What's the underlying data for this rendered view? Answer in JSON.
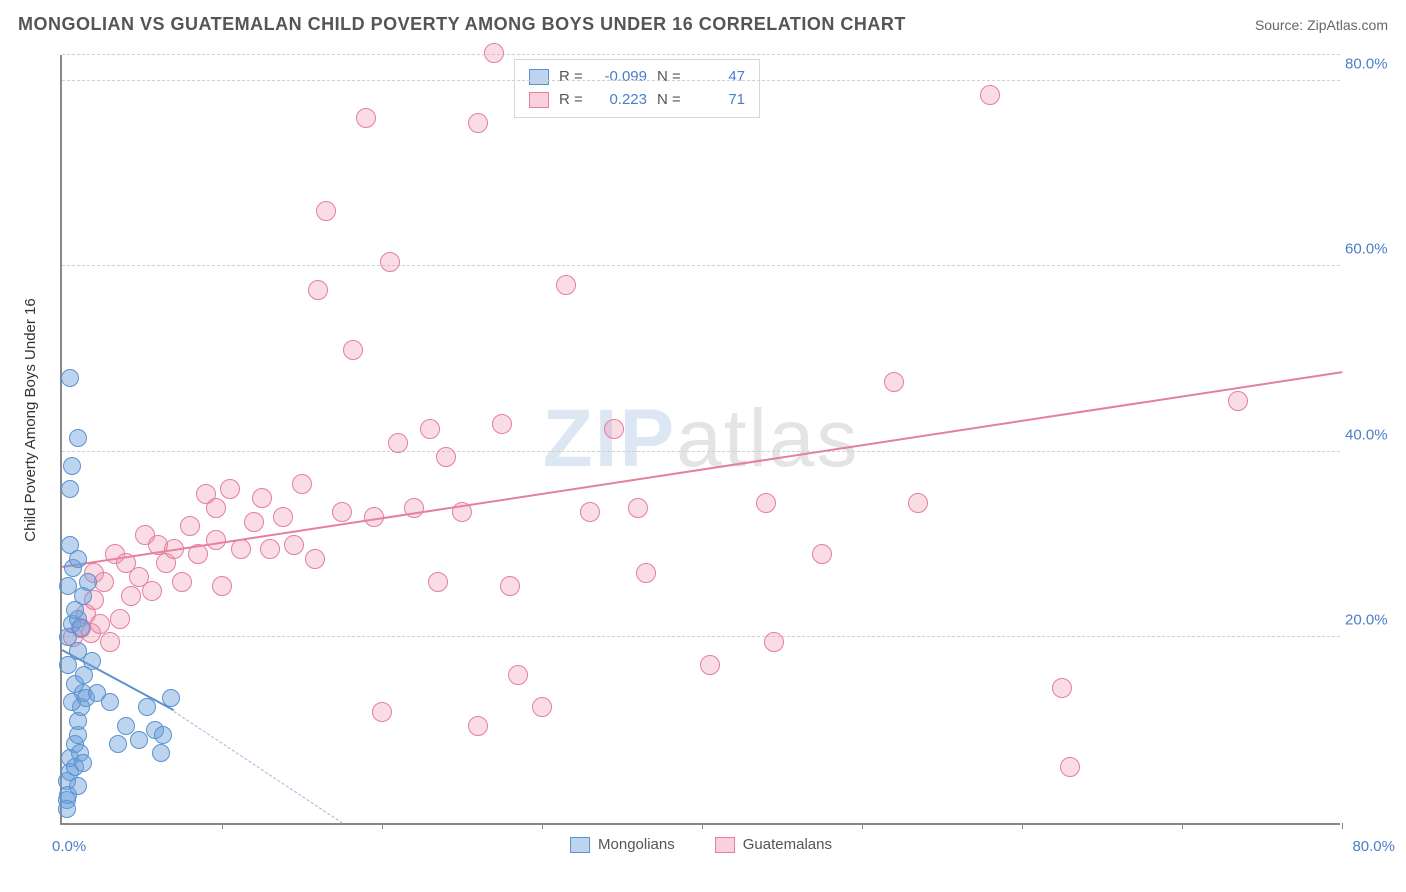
{
  "title": "MONGOLIAN VS GUATEMALAN CHILD POVERTY AMONG BOYS UNDER 16 CORRELATION CHART",
  "source_label": "Source:",
  "source_name": "ZipAtlas.com",
  "watermark_a": "ZIP",
  "watermark_b": "atlas",
  "yaxis_label": "Child Poverty Among Boys Under 16",
  "chart": {
    "type": "scatter",
    "xmin": 0,
    "xmax": 80,
    "ymin": 0,
    "ymax": 83,
    "x_origin_label": "0.0%",
    "x_end_label": "80.0%",
    "y_ticks": [
      20,
      40,
      60,
      80
    ],
    "y_tick_labels": [
      "20.0%",
      "40.0%",
      "60.0%",
      "80.0%"
    ],
    "x_tick_positions": [
      10,
      20,
      30,
      40,
      50,
      60,
      70,
      80
    ],
    "grid_color": "#d0d0d0",
    "axis_color": "#888888",
    "tick_label_color": "#4a7ec9",
    "background_color": "#ffffff",
    "marker_radius_blue": 9,
    "marker_radius_pink": 10,
    "blue_fill": "rgba(108,160,220,0.45)",
    "blue_stroke": "#5a92d0",
    "pink_fill": "rgba(240,140,170,0.30)",
    "pink_stroke": "#e47fa0"
  },
  "series": [
    {
      "name": "Mongolians",
      "color": "#5a92d0",
      "r_label": "R =",
      "r_value": "-0.099",
      "n_label": "N =",
      "n_value": "47",
      "trend": {
        "x1": 0,
        "y1": 18.5,
        "x2_solid": 7,
        "y2_solid": 12.0,
        "x2_dash": 17.5,
        "y2_dash": 0
      },
      "points": [
        [
          0.3,
          2.5
        ],
        [
          0.3,
          4.5
        ],
        [
          0.4,
          3.0
        ],
        [
          0.5,
          5.5
        ],
        [
          0.5,
          7.0
        ],
        [
          0.8,
          6.0
        ],
        [
          0.8,
          8.5
        ],
        [
          1.0,
          4.0
        ],
        [
          1.0,
          9.5
        ],
        [
          1.0,
          11.0
        ],
        [
          1.1,
          7.5
        ],
        [
          1.2,
          12.5
        ],
        [
          1.3,
          6.5
        ],
        [
          1.3,
          14.0
        ],
        [
          0.6,
          13.0
        ],
        [
          0.8,
          15.0
        ],
        [
          1.4,
          16.0
        ],
        [
          0.4,
          17.0
        ],
        [
          1.5,
          13.5
        ],
        [
          1.0,
          18.5
        ],
        [
          0.4,
          20.0
        ],
        [
          0.6,
          21.5
        ],
        [
          1.0,
          22.0
        ],
        [
          1.3,
          24.5
        ],
        [
          0.8,
          23.0
        ],
        [
          0.4,
          25.5
        ],
        [
          1.6,
          26.0
        ],
        [
          0.7,
          27.5
        ],
        [
          1.2,
          21.0
        ],
        [
          0.5,
          30.0
        ],
        [
          1.0,
          28.5
        ],
        [
          0.5,
          36.0
        ],
        [
          0.6,
          38.5
        ],
        [
          1.0,
          41.5
        ],
        [
          0.5,
          48.0
        ],
        [
          2.2,
          14.0
        ],
        [
          3.0,
          13.0
        ],
        [
          3.5,
          8.5
        ],
        [
          4.0,
          10.5
        ],
        [
          4.8,
          9.0
        ],
        [
          5.3,
          12.5
        ],
        [
          5.8,
          10.0
        ],
        [
          6.3,
          9.5
        ],
        [
          6.8,
          13.5
        ],
        [
          6.2,
          7.5
        ],
        [
          1.9,
          17.5
        ],
        [
          0.3,
          1.5
        ]
      ]
    },
    {
      "name": "Guatemalans",
      "color": "#e47fa0",
      "r_label": "R =",
      "r_value": "0.223",
      "n_label": "N =",
      "n_value": "71",
      "trend": {
        "x1": 0,
        "y1": 27.5,
        "x2_solid": 80,
        "y2_solid": 48.5
      },
      "points": [
        [
          0.7,
          20.0
        ],
        [
          1.2,
          21.0
        ],
        [
          1.5,
          22.5
        ],
        [
          1.8,
          20.5
        ],
        [
          2.0,
          24.0
        ],
        [
          2.4,
          21.5
        ],
        [
          2.0,
          27.0
        ],
        [
          2.6,
          26.0
        ],
        [
          3.0,
          19.5
        ],
        [
          3.3,
          29.0
        ],
        [
          3.6,
          22.0
        ],
        [
          4.0,
          28.0
        ],
        [
          4.3,
          24.5
        ],
        [
          4.8,
          26.5
        ],
        [
          5.2,
          31.0
        ],
        [
          5.6,
          25.0
        ],
        [
          6.0,
          30.0
        ],
        [
          6.5,
          28.0
        ],
        [
          7.0,
          29.5
        ],
        [
          7.5,
          26.0
        ],
        [
          8.0,
          32.0
        ],
        [
          8.5,
          29.0
        ],
        [
          9.0,
          35.5
        ],
        [
          9.6,
          30.5
        ],
        [
          9.6,
          34.0
        ],
        [
          10.0,
          25.5
        ],
        [
          10.5,
          36.0
        ],
        [
          11.2,
          29.5
        ],
        [
          12.0,
          32.5
        ],
        [
          12.5,
          35.0
        ],
        [
          13.0,
          29.5
        ],
        [
          13.8,
          33.0
        ],
        [
          14.5,
          30.0
        ],
        [
          15.0,
          36.5
        ],
        [
          15.8,
          28.5
        ],
        [
          16.0,
          57.5
        ],
        [
          16.5,
          66.0
        ],
        [
          17.5,
          33.5
        ],
        [
          18.2,
          51.0
        ],
        [
          19.0,
          76.0
        ],
        [
          19.5,
          33.0
        ],
        [
          20.5,
          60.5
        ],
        [
          21.0,
          41.0
        ],
        [
          22.0,
          34.0
        ],
        [
          23.0,
          42.5
        ],
        [
          23.5,
          26.0
        ],
        [
          24.0,
          39.5
        ],
        [
          25.0,
          33.5
        ],
        [
          26.0,
          75.5
        ],
        [
          27.0,
          83.0
        ],
        [
          27.5,
          43.0
        ],
        [
          28.0,
          25.5
        ],
        [
          28.5,
          16.0
        ],
        [
          26.0,
          10.5
        ],
        [
          30.0,
          12.5
        ],
        [
          31.5,
          58.0
        ],
        [
          33.0,
          33.5
        ],
        [
          34.5,
          42.5
        ],
        [
          36.0,
          34.0
        ],
        [
          36.5,
          27.0
        ],
        [
          40.5,
          17.0
        ],
        [
          44.0,
          34.5
        ],
        [
          44.5,
          19.5
        ],
        [
          47.5,
          29.0
        ],
        [
          52.0,
          47.5
        ],
        [
          53.5,
          34.5
        ],
        [
          58.0,
          78.5
        ],
        [
          62.5,
          14.5
        ],
        [
          63.0,
          6.0
        ],
        [
          73.5,
          45.5
        ],
        [
          20.0,
          12.0
        ]
      ]
    }
  ],
  "legend_bottom": [
    {
      "swatch": "blue",
      "label": "Mongolians"
    },
    {
      "swatch": "pink",
      "label": "Guatemalans"
    }
  ]
}
